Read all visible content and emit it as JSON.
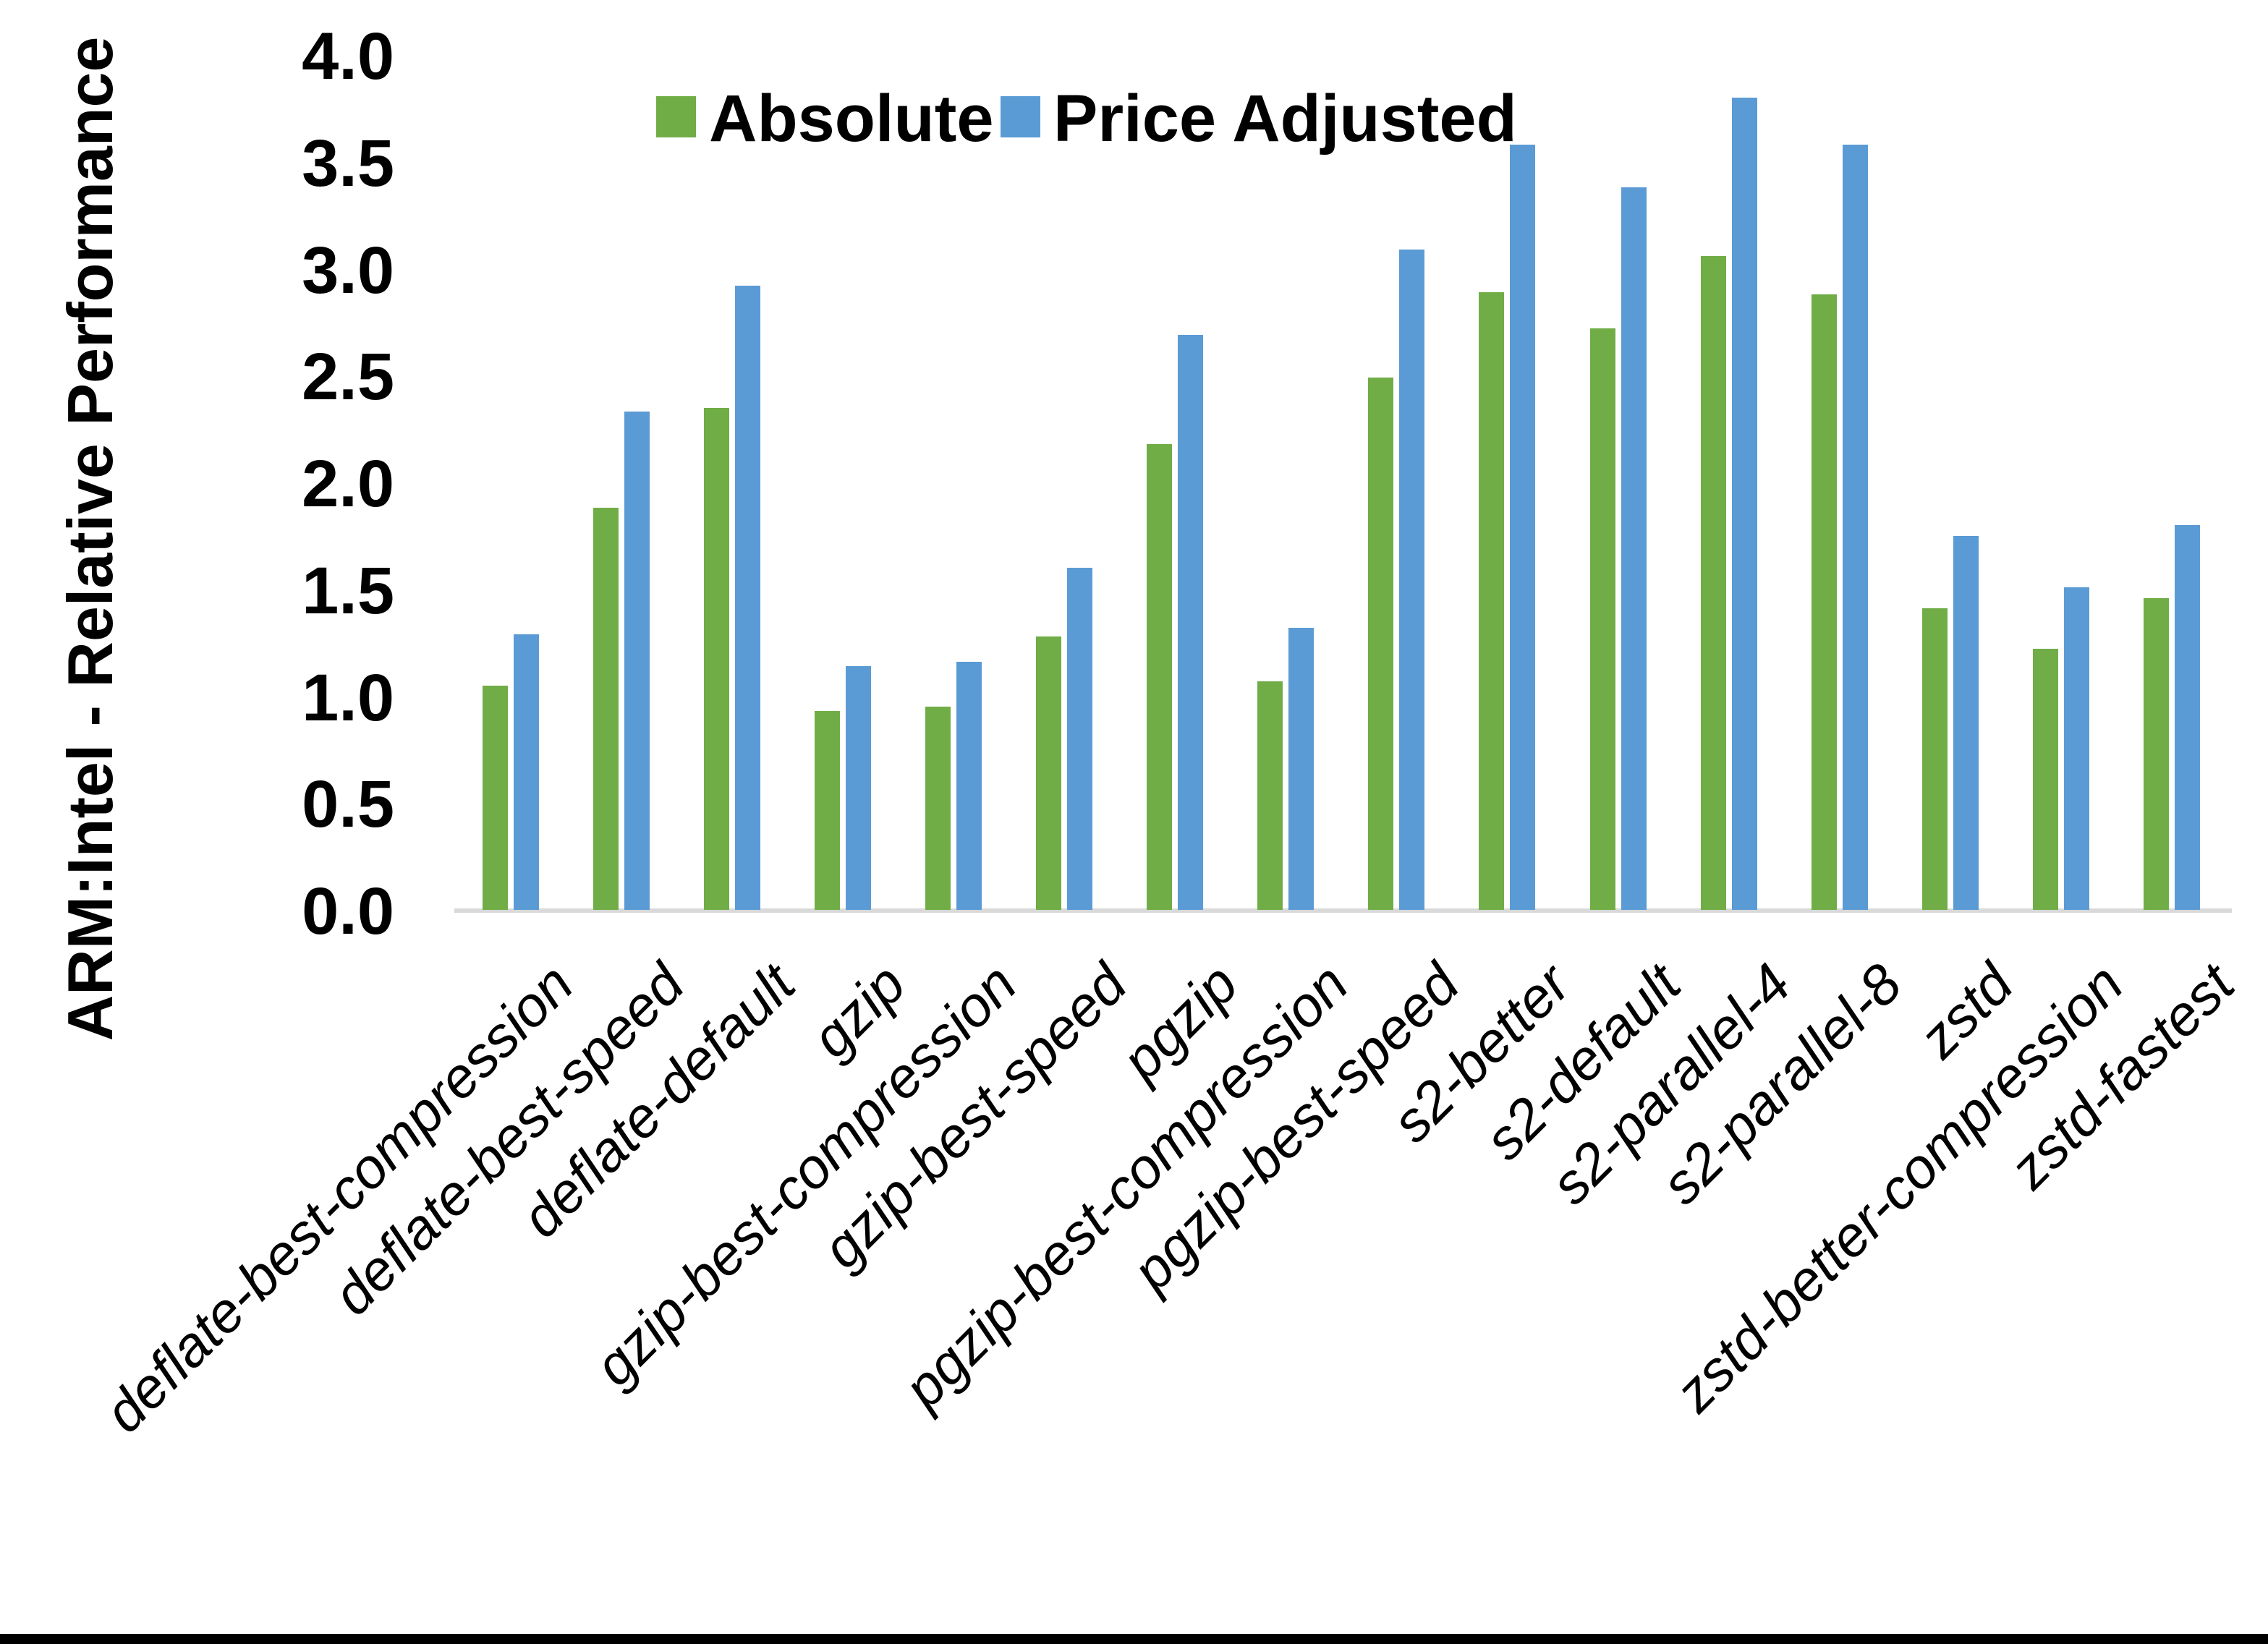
{
  "chart_data": {
    "type": "bar",
    "title": "",
    "xlabel": "",
    "ylabel": "ARM:Intel - Relative Performance",
    "ylim": [
      0.0,
      4.0
    ],
    "ytick_step": 0.5,
    "ytick_labels": [
      "0.0",
      "0.5",
      "1.0",
      "1.5",
      "2.0",
      "2.5",
      "3.0",
      "3.5",
      "4.0"
    ],
    "grid": false,
    "legend_position": "top",
    "categories": [
      "deflate-best-compression",
      "deflate-best-speed",
      "deflate-default",
      "gzip",
      "gzip-best-compression",
      "gzip-best-speed",
      "pgzip",
      "pgzip-best-compression",
      "pgzip-best-speed",
      "s2-better",
      "s2-default",
      "s2-parallel-4",
      "s2-parallel-8",
      "zstd",
      "zstd-better-compression",
      "zstd-fastest"
    ],
    "series": [
      {
        "name": "Absolute",
        "color": "#70AD47",
        "values": [
          1.05,
          1.88,
          2.35,
          0.93,
          0.95,
          1.28,
          2.18,
          1.07,
          2.49,
          2.89,
          2.72,
          3.06,
          2.88,
          1.41,
          1.22,
          1.46
        ]
      },
      {
        "name": "Price Adjusted",
        "color": "#5B9BD5",
        "values": [
          1.29,
          2.33,
          2.92,
          1.14,
          1.16,
          1.6,
          2.69,
          1.32,
          3.09,
          3.58,
          3.38,
          3.8,
          3.58,
          1.75,
          1.51,
          1.8
        ]
      }
    ]
  },
  "colors": {
    "axis_line": "#D9D9D9",
    "text": "#000000",
    "bottom_border": "#000000",
    "background": "#FFFFFF"
  }
}
